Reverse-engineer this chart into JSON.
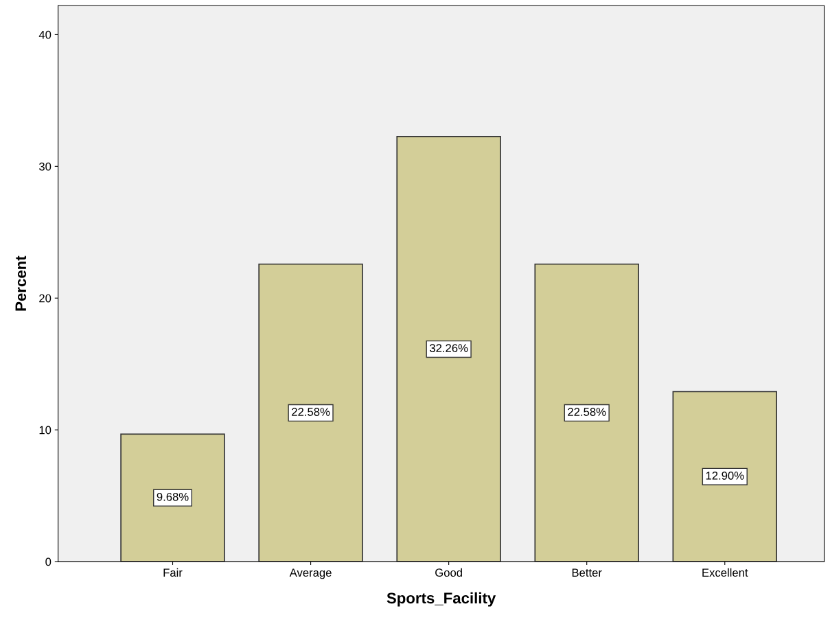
{
  "chart_data": {
    "type": "bar",
    "xlabel": "Sports_Facility",
    "ylabel": "Percent",
    "categories": [
      "Fair",
      "Average",
      "Good",
      "Better",
      "Excellent"
    ],
    "values": [
      9.68,
      22.58,
      32.26,
      22.58,
      12.9
    ],
    "value_labels": [
      "9.68%",
      "22.58%",
      "32.26%",
      "22.58%",
      "12.90%"
    ],
    "color": "#d3ce98",
    "ylim": [
      0,
      42.2
    ],
    "yticks": [
      0,
      10,
      20,
      30,
      40
    ],
    "grid": false
  }
}
